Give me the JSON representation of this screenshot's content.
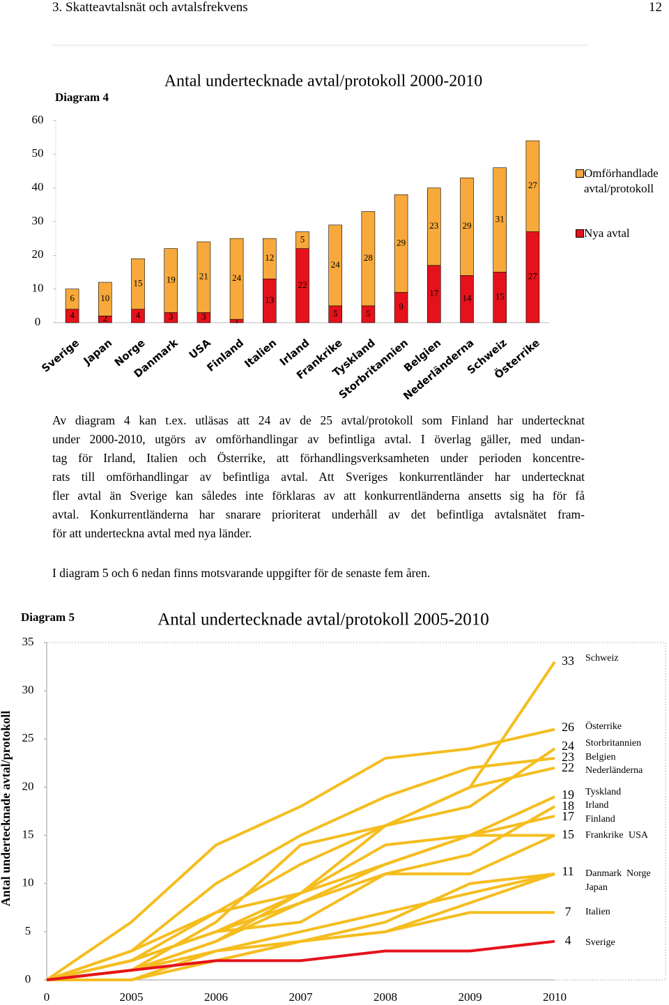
{
  "header": {
    "section": "3. Skatteavtalsnät och avtalsfrekvens",
    "page": "12"
  },
  "chart_data": [
    {
      "type": "bar",
      "stacked": true,
      "label": "Diagram 4",
      "title": "Antal undertecknade avtal/protokoll 2000-2010",
      "categories": [
        "Sverige",
        "Japan",
        "Norge",
        "Danmark",
        "USA",
        "Finland",
        "Italien",
        "Irland",
        "Frankrike",
        "Tyskland",
        "Storbritannien",
        "Belgien",
        "Nederländerna",
        "Schweiz",
        "Österrike"
      ],
      "series": [
        {
          "name": "Omförhandlade avtal/protokoll",
          "color": "#f7a93b",
          "values": [
            6,
            10,
            15,
            19,
            21,
            24,
            12,
            5,
            24,
            28,
            29,
            23,
            29,
            31,
            27
          ]
        },
        {
          "name": "Nya avtal",
          "color": "#e5121b",
          "values": [
            4,
            2,
            4,
            3,
            3,
            1,
            13,
            22,
            5,
            5,
            9,
            17,
            14,
            15,
            27
          ]
        }
      ],
      "ylim": [
        0,
        60
      ],
      "yticks": [
        0,
        10,
        20,
        30,
        40,
        50,
        60
      ],
      "legend": "right"
    },
    {
      "type": "line",
      "label": "Diagram 5",
      "title": "Antal undertecknade avtal/protokoll 2005-2010",
      "y_label": "Antal undertecknade avtal/protokoll",
      "categories": [
        "0",
        "2005",
        "2006",
        "2007",
        "2008",
        "2009",
        "2010"
      ],
      "series": [
        {
          "name": "Schweiz",
          "color": "#f5bd1f",
          "values": [
            0,
            2,
            5,
            9,
            16,
            20,
            33
          ]
        },
        {
          "name": "Österrike",
          "color": "#f5bd1f",
          "values": [
            0,
            6,
            14,
            18,
            23,
            24,
            26
          ]
        },
        {
          "name": "Storbritannien",
          "color": "#f5bd1f",
          "values": [
            0,
            1,
            6,
            14,
            16,
            18,
            24
          ]
        },
        {
          "name": "Belgien",
          "color": "#f5bd1f",
          "values": [
            0,
            3,
            10,
            15,
            19,
            22,
            23
          ]
        },
        {
          "name": "Nederländerna",
          "color": "#f5bd1f",
          "values": [
            0,
            2,
            7,
            12,
            16,
            20,
            22
          ]
        },
        {
          "name": "Tyskland",
          "color": "#f5bd1f",
          "values": [
            0,
            1,
            4,
            9,
            12,
            15,
            19
          ]
        },
        {
          "name": "Irland",
          "color": "#f5bd1f",
          "values": [
            0,
            2,
            5,
            8,
            11,
            13,
            18
          ]
        },
        {
          "name": "Finland",
          "color": "#f5bd1f",
          "values": [
            0,
            3,
            7,
            9,
            14,
            15,
            17
          ]
        },
        {
          "name": "Frankrike",
          "color": "#f5bd1f",
          "values": [
            0,
            2,
            5,
            6,
            11,
            11,
            15
          ]
        },
        {
          "name": "USA",
          "color": "#f5bd1f",
          "values": [
            0,
            1,
            4,
            8,
            12,
            15,
            15
          ]
        },
        {
          "name": "Danmark",
          "color": "#f5bd1f",
          "values": [
            0,
            0,
            3,
            5,
            7,
            9,
            11
          ]
        },
        {
          "name": "Norge",
          "color": "#f5bd1f",
          "values": [
            0,
            1,
            2,
            4,
            6,
            10,
            11
          ]
        },
        {
          "name": "Japan",
          "color": "#f5bd1f",
          "values": [
            0,
            1,
            3,
            4,
            5,
            8,
            11
          ]
        },
        {
          "name": "Italien",
          "color": "#f5bd1f",
          "values": [
            0,
            0,
            2,
            4,
            5,
            7,
            7
          ]
        },
        {
          "name": "Sverige",
          "color": "#e5121b",
          "values": [
            0,
            1,
            2,
            2,
            3,
            3,
            4
          ]
        }
      ],
      "ylim": [
        0,
        35
      ],
      "yticks": [
        0,
        5,
        10,
        15,
        20,
        25,
        30,
        35
      ]
    }
  ],
  "body": {
    "paragraphs": [
      [
        "Av diagram 4 kan t.ex. utläsas att 24 av de 25 avtal/protokoll som Finland har undertecknat",
        "under 2000-2010, utgörs av omförhandlingar av befintliga avtal. I överlag gäller, med undan-",
        "tag för Irland, Italien och Österrike, att förhandlingsverksamheten under perioden koncentre-",
        "rats till omförhandlingar av befintliga avtal. Att Sveriges konkurrentländer har undertecknat",
        "fler avtal än Sverige kan således inte förklaras av att konkurrentländerna ansetts sig ha för få",
        "avtal. Konkurrentländerna har snarare prioriterat underhåll av det befintliga avtalsnätet fram-",
        "för att underteckna avtal med nya länder."
      ],
      [
        "I diagram 5 och 6 nedan finns motsvarande uppgifter för de senaste fem åren."
      ]
    ]
  }
}
